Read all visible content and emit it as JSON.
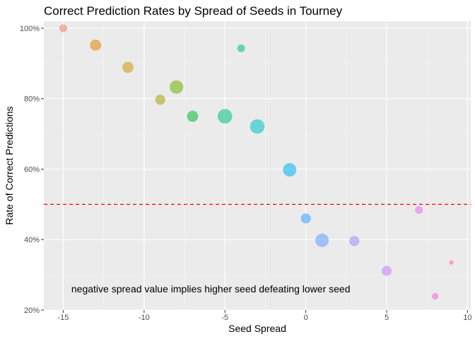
{
  "chart_data": {
    "type": "scatter",
    "title": "Correct Prediction Rates by Spread of Seeds in Tourney",
    "xlabel": "Seed Spread",
    "ylabel": "Rate of Correct Predictions",
    "xlim": [
      -16.2,
      10.2
    ],
    "ylim": [
      0.2,
      1.02
    ],
    "x_ticks": [
      -15,
      -10,
      -5,
      0,
      5,
      10
    ],
    "x_tick_labels": [
      "-15",
      "-10",
      "-5",
      "0",
      "5",
      "10"
    ],
    "y_ticks": [
      0.2,
      0.4,
      0.6,
      0.8,
      1.0
    ],
    "y_tick_labels": [
      "20%",
      "40%",
      "60%",
      "80%",
      "100%"
    ],
    "grid": true,
    "legend": "none",
    "reference_line": {
      "y": 0.5,
      "color": "#ff0000",
      "style": "dashed"
    },
    "annotation": {
      "text": "negative spread value implies higher seed defeating lower seed",
      "x": -14.5,
      "y": 0.25
    },
    "points": [
      {
        "x": -15,
        "y": 1.0,
        "size": 5,
        "color": "#f8766d"
      },
      {
        "x": -13,
        "y": 0.952,
        "size": 8,
        "color": "#e58700"
      },
      {
        "x": -11,
        "y": 0.889,
        "size": 8,
        "color": "#c99800"
      },
      {
        "x": -9,
        "y": 0.797,
        "size": 7,
        "color": "#a3a500"
      },
      {
        "x": -8,
        "y": 0.833,
        "size": 10,
        "color": "#6bb100"
      },
      {
        "x": -7,
        "y": 0.75,
        "size": 8,
        "color": "#00ba38"
      },
      {
        "x": -5,
        "y": 0.75,
        "size": 11,
        "color": "#00bf7d"
      },
      {
        "x": -4,
        "y": 0.943,
        "size": 5,
        "color": "#00c08b"
      },
      {
        "x": -3,
        "y": 0.721,
        "size": 11,
        "color": "#00bfc4"
      },
      {
        "x": -1,
        "y": 0.598,
        "size": 10,
        "color": "#00b0f6"
      },
      {
        "x": 0,
        "y": 0.46,
        "size": 7,
        "color": "#35a2ff"
      },
      {
        "x": 1,
        "y": 0.398,
        "size": 10,
        "color": "#619cff"
      },
      {
        "x": 3,
        "y": 0.396,
        "size": 7,
        "color": "#9590ff"
      },
      {
        "x": 5,
        "y": 0.311,
        "size": 7,
        "color": "#c77cff"
      },
      {
        "x": 7,
        "y": 0.484,
        "size": 5,
        "color": "#e76bf3"
      },
      {
        "x": 8,
        "y": 0.239,
        "size": 4,
        "color": "#fa62db"
      },
      {
        "x": 9,
        "y": 0.335,
        "size": 2,
        "color": "#ff62bc"
      }
    ]
  }
}
